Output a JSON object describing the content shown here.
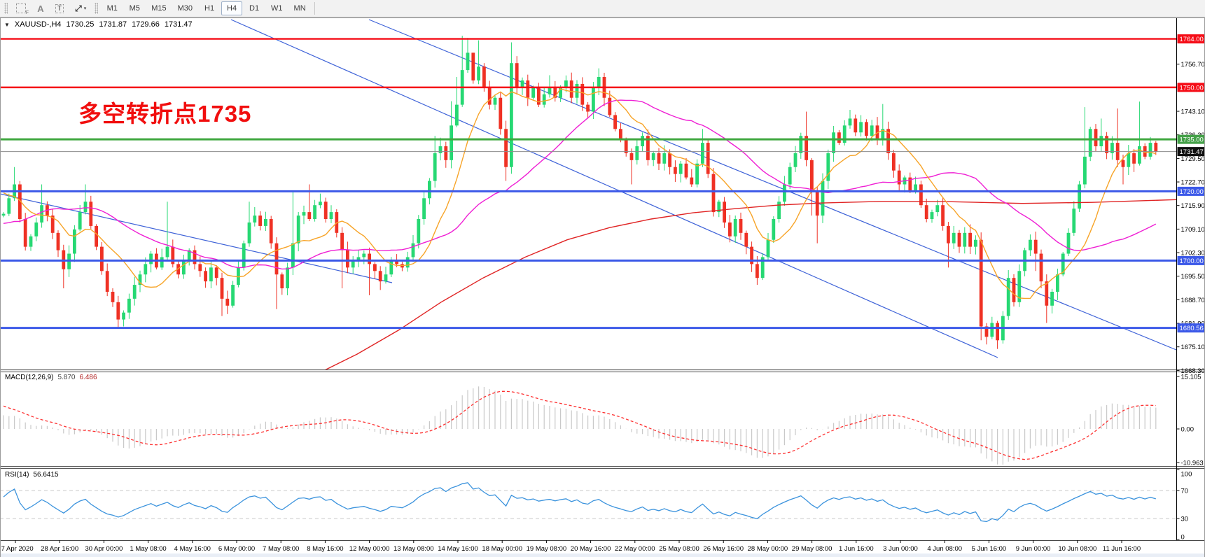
{
  "toolbar": {
    "icons": [
      {
        "name": "pointer-box-icon",
        "glyph": "F"
      },
      {
        "name": "insert-text-icon",
        "glyph": "A"
      },
      {
        "name": "label-tool-icon",
        "glyph": "T"
      },
      {
        "name": "line-tools-icon",
        "glyph": "⤢"
      }
    ],
    "dropdown_caret": "▾",
    "timeframes": [
      "M1",
      "M5",
      "M15",
      "M30",
      "H1",
      "H4",
      "D1",
      "W1",
      "MN"
    ],
    "active": "H4"
  },
  "chart_data": {
    "type": "candlestick",
    "title": {
      "dropdown": "▼",
      "symbol": "XAUUSD-,H4",
      "open": "1730.25",
      "high": "1731.87",
      "low": "1729.66",
      "close": "1731.47"
    },
    "annotation": {
      "text": "多空转折点1735",
      "color": "#f10e0e"
    },
    "price_axis": {
      "ticks": [
        "1756.70",
        "1743.10",
        "1736.30",
        "1729.50",
        "1722.70",
        "1715.90",
        "1709.10",
        "1702.30",
        "1695.50",
        "1688.70",
        "1681.90",
        "1675.10",
        "1668.30"
      ],
      "levels": [
        {
          "price": 1764.0,
          "label": "1764.00",
          "box": "#f50d17",
          "line": "#f50d17",
          "width": 2.4
        },
        {
          "price": 1750.0,
          "label": "1750.00",
          "box": "#f50d17",
          "line": "#f50d17",
          "width": 2.4
        },
        {
          "price": 1735.0,
          "label": "1735.00",
          "box": "#43a047",
          "line": "#3fa73f",
          "width": 3
        },
        {
          "price": 1731.47,
          "label": "1731.47",
          "box": "#101010",
          "line": "#8c8c8c",
          "width": 1
        },
        {
          "price": 1720.0,
          "label": "1720.00",
          "box": "#3c59e8",
          "line": "#3c59e8",
          "width": 3
        },
        {
          "price": 1700.0,
          "label": "1700.00",
          "box": "#3c59e8",
          "line": "#3c59e8",
          "width": 3
        },
        {
          "price": 1680.56,
          "label": "1680.56",
          "box": "#3c59e8",
          "line": "#3c59e8",
          "width": 3
        }
      ]
    },
    "time_axis": {
      "labels": [
        "27 Apr 2020",
        "28 Apr 16:00",
        "30 Apr 00:00",
        "1 May 08:00",
        "4 May 16:00",
        "6 May 00:00",
        "7 May 08:00",
        "8 May 16:00",
        "12 May 00:00",
        "13 May 08:00",
        "14 May 16:00",
        "18 May 00:00",
        "19 May 08:00",
        "20 May 16:00",
        "22 May 00:00",
        "25 May 08:00",
        "26 May 16:00",
        "28 May 00:00",
        "29 May 08:00",
        "1 Jun 16:00",
        "3 Jun 00:00",
        "4 Jun 08:00",
        "5 Jun 16:00",
        "9 Jun 00:00",
        "10 Jun 08:00",
        "11 Jun 16:00"
      ]
    },
    "candles": {
      "up_color": "#26d873",
      "down_color": "#ef3124",
      "prelude_closes": [
        1682,
        1685,
        1688,
        1691,
        1694,
        1697,
        1700,
        1702,
        1704,
        1706,
        1708,
        1710,
        1712,
        1714,
        1716,
        1718,
        1720,
        1721,
        1722,
        1723,
        1724,
        1725,
        1725,
        1724,
        1723,
        1721,
        1719,
        1717,
        1715,
        1713
      ],
      "closes": [
        1713.5,
        1718,
        1722,
        1712,
        1704,
        1707,
        1711,
        1716,
        1713,
        1708,
        1703,
        1697.5,
        1702,
        1709,
        1714,
        1717,
        1710,
        1704,
        1697,
        1691,
        1688,
        1683,
        1685,
        1689,
        1693,
        1696,
        1699,
        1702,
        1698,
        1701,
        1704,
        1699,
        1696,
        1700,
        1703,
        1699,
        1697,
        1694,
        1698,
        1695,
        1689,
        1687,
        1693,
        1698,
        1705,
        1711,
        1713,
        1710,
        1712,
        1705,
        1696,
        1692,
        1698,
        1705,
        1713,
        1714,
        1712,
        1716,
        1717,
        1712,
        1714,
        1708,
        1703,
        1698,
        1700,
        1701,
        1702,
        1699,
        1697,
        1694,
        1696,
        1700,
        1699,
        1698,
        1701,
        1705,
        1712,
        1718,
        1723,
        1731,
        1733,
        1729,
        1739,
        1745,
        1755,
        1760,
        1752,
        1756,
        1750,
        1745,
        1747,
        1738,
        1727,
        1757,
        1750,
        1752,
        1747,
        1750,
        1745,
        1748,
        1750,
        1747,
        1750,
        1752,
        1747,
        1751,
        1745,
        1743,
        1750,
        1753,
        1747,
        1742,
        1738,
        1735,
        1731,
        1729,
        1733,
        1736,
        1729,
        1731,
        1728,
        1731,
        1727,
        1725,
        1728,
        1724,
        1722,
        1728,
        1734,
        1725,
        1714,
        1717,
        1711,
        1707,
        1712,
        1708,
        1704,
        1699,
        1695,
        1701,
        1706,
        1712,
        1717,
        1722,
        1727,
        1731,
        1736,
        1729,
        1720,
        1713,
        1723,
        1731,
        1737,
        1734,
        1739,
        1741,
        1737,
        1740,
        1736,
        1739,
        1735,
        1738,
        1731,
        1726,
        1722,
        1724,
        1720,
        1722,
        1716,
        1712,
        1714,
        1716,
        1710,
        1705,
        1708,
        1704,
        1708,
        1704,
        1706,
        1681,
        1678,
        1682,
        1677,
        1684,
        1695,
        1688,
        1697,
        1703,
        1706,
        1702,
        1694,
        1687,
        1691,
        1696,
        1702,
        1708,
        1715,
        1722,
        1730,
        1738,
        1733,
        1736,
        1731,
        1734,
        1729,
        1727,
        1731,
        1728,
        1733,
        1730,
        1734,
        1731.5
      ],
      "wick_high_overrides": {
        "2": 1727,
        "7": 1722,
        "15": 1722,
        "30": 1717,
        "45": 1717,
        "53": 1720,
        "56": 1722,
        "79": 1736,
        "82": 1746,
        "83": 1753,
        "84": 1764.9,
        "85": 1764.3,
        "86": 1760,
        "87": 1763.6,
        "88": 1757,
        "93": 1763,
        "100": 1753.5,
        "109": 1755.5,
        "128": 1738,
        "147": 1743,
        "155": 1743.5,
        "161": 1745.2,
        "198": 1744.3,
        "201": 1741,
        "204": 1743.9,
        "208": 1745.9
      },
      "wick_low_overrides": {
        "11": 1692,
        "21": 1680.8,
        "22": 1681,
        "40": 1684,
        "50": 1686,
        "62": 1692,
        "67": 1690,
        "92": 1723,
        "115": 1722,
        "138": 1693,
        "148": 1713,
        "149": 1705,
        "173": 1698,
        "179": 1677,
        "180": 1675.8,
        "182": 1674.5,
        "189": 1697,
        "191": 1682,
        "205": 1722
      }
    },
    "moving_averages": [
      {
        "name": "MA fast",
        "period": 10,
        "color": "#f7a428"
      },
      {
        "name": "MA medium",
        "period": 34,
        "color": "#ef1fd4"
      }
    ],
    "slow_ma": {
      "color": "#e02424",
      "points": [
        [
          390,
          1662
        ],
        [
          450,
          1667
        ],
        [
          510,
          1673
        ],
        [
          570,
          1680
        ],
        [
          630,
          1688
        ],
        [
          690,
          1695
        ],
        [
          750,
          1701
        ],
        [
          810,
          1706
        ],
        [
          870,
          1709.5
        ],
        [
          930,
          1712
        ],
        [
          990,
          1713.8
        ],
        [
          1050,
          1715
        ],
        [
          1110,
          1716
        ],
        [
          1170,
          1716.6
        ],
        [
          1260,
          1717.1
        ],
        [
          1360,
          1717
        ],
        [
          1460,
          1716.5
        ],
        [
          1560,
          1716.8
        ],
        [
          1680,
          1717.6
        ]
      ]
    },
    "trendlines": {
      "color": "#3f63d8",
      "lines": [
        [
          527,
          3,
          1680,
          475
        ],
        [
          330,
          3,
          1425,
          486
        ],
        [
          0,
          252,
          560,
          379
        ]
      ]
    },
    "macd": {
      "name": "MACD(12,26,9)",
      "value_main": "5.870",
      "value_signal": "6.486",
      "ticks": [
        "15.105",
        "0.00",
        "-10.963"
      ],
      "hist_color": "#c9c9c9",
      "signal_color": "#fd3131"
    },
    "rsi": {
      "name": "RSI(14)",
      "value": "56.6415",
      "ticks": [
        "100",
        "70",
        "30",
        "0"
      ],
      "levels": [
        70,
        30
      ],
      "color": "#3b93dd",
      "level_color": "#c8c8c8"
    }
  }
}
